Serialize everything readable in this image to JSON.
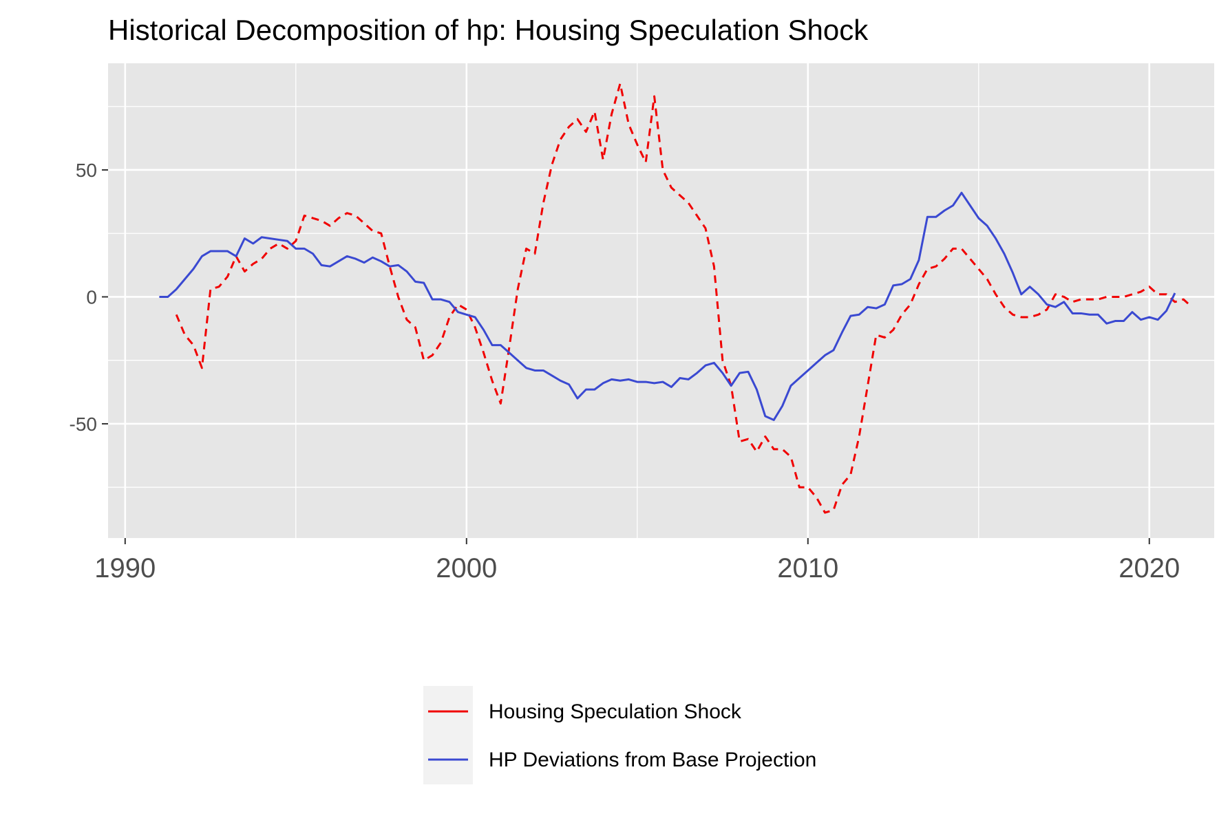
{
  "chart_data": {
    "type": "line",
    "title": "Historical Decomposition of hp: Housing Speculation Shock",
    "xlabel": "",
    "ylabel": "",
    "xlim": [
      1989.5,
      2021.9
    ],
    "ylim": [
      -95,
      92
    ],
    "x_ticks": [
      1990,
      2000,
      2010,
      2020
    ],
    "x_tick_labels": [
      "1990",
      "2000",
      "2010",
      "2020"
    ],
    "y_ticks": [
      -50,
      0,
      50
    ],
    "y_tick_labels": [
      "-50",
      "0",
      "50"
    ],
    "grid": true,
    "legend_position": "bottom",
    "series": [
      {
        "name": "Housing Speculation Shock",
        "color": "#f00000",
        "dash": "dashed",
        "points": [
          [
            1991.5,
            -7
          ],
          [
            1991.75,
            -15
          ],
          [
            1992.0,
            -19
          ],
          [
            1992.25,
            -28
          ],
          [
            1992.5,
            3
          ],
          [
            1992.75,
            4
          ],
          [
            1993.0,
            8
          ],
          [
            1993.25,
            16
          ],
          [
            1993.5,
            10
          ],
          [
            1993.75,
            13
          ],
          [
            1994.0,
            15
          ],
          [
            1994.25,
            19
          ],
          [
            1994.5,
            21
          ],
          [
            1994.75,
            19
          ],
          [
            1995.0,
            22
          ],
          [
            1995.25,
            32
          ],
          [
            1995.5,
            31
          ],
          [
            1995.75,
            30
          ],
          [
            1996.0,
            28
          ],
          [
            1996.25,
            31
          ],
          [
            1996.5,
            33
          ],
          [
            1996.75,
            32
          ],
          [
            1997.0,
            29
          ],
          [
            1997.25,
            26
          ],
          [
            1997.5,
            25
          ],
          [
            1997.75,
            12
          ],
          [
            1998.0,
            0
          ],
          [
            1998.25,
            -9
          ],
          [
            1998.5,
            -12
          ],
          [
            1998.75,
            -25
          ],
          [
            1999.0,
            -23
          ],
          [
            1999.25,
            -18
          ],
          [
            1999.5,
            -8
          ],
          [
            1999.75,
            -3
          ],
          [
            2000.0,
            -5
          ],
          [
            2000.25,
            -12
          ],
          [
            2000.5,
            -22
          ],
          [
            2000.75,
            -33
          ],
          [
            2001.0,
            -42
          ],
          [
            2001.25,
            -20
          ],
          [
            2001.5,
            3
          ],
          [
            2001.75,
            19
          ],
          [
            2002.0,
            17
          ],
          [
            2002.25,
            37
          ],
          [
            2002.5,
            52
          ],
          [
            2002.75,
            62
          ],
          [
            2003.0,
            67
          ],
          [
            2003.25,
            70
          ],
          [
            2003.5,
            65
          ],
          [
            2003.75,
            73
          ],
          [
            2004.0,
            54
          ],
          [
            2004.25,
            72
          ],
          [
            2004.5,
            84
          ],
          [
            2004.75,
            68
          ],
          [
            2005.0,
            60
          ],
          [
            2005.25,
            53
          ],
          [
            2005.5,
            79
          ],
          [
            2005.75,
            50
          ],
          [
            2006.0,
            43
          ],
          [
            2006.25,
            40
          ],
          [
            2006.5,
            37
          ],
          [
            2006.75,
            32
          ],
          [
            2007.0,
            27
          ],
          [
            2007.25,
            12
          ],
          [
            2007.5,
            -25
          ],
          [
            2007.75,
            -35
          ],
          [
            2008.0,
            -57
          ],
          [
            2008.25,
            -56
          ],
          [
            2008.5,
            -61
          ],
          [
            2008.75,
            -55
          ],
          [
            2009.0,
            -60
          ],
          [
            2009.25,
            -60
          ],
          [
            2009.5,
            -63
          ],
          [
            2009.75,
            -75
          ],
          [
            2010.0,
            -75
          ],
          [
            2010.25,
            -79
          ],
          [
            2010.5,
            -85
          ],
          [
            2010.75,
            -84
          ],
          [
            2011.0,
            -74
          ],
          [
            2011.25,
            -70
          ],
          [
            2011.5,
            -55
          ],
          [
            2011.75,
            -35
          ],
          [
            2012.0,
            -15
          ],
          [
            2012.25,
            -16
          ],
          [
            2012.5,
            -13
          ],
          [
            2012.75,
            -7
          ],
          [
            2013.0,
            -3
          ],
          [
            2013.25,
            5
          ],
          [
            2013.5,
            11
          ],
          [
            2013.75,
            12
          ],
          [
            2014.0,
            15
          ],
          [
            2014.25,
            19
          ],
          [
            2014.5,
            19
          ],
          [
            2014.75,
            15
          ],
          [
            2015.0,
            11
          ],
          [
            2015.25,
            7
          ],
          [
            2015.5,
            1
          ],
          [
            2015.75,
            -4
          ],
          [
            2016.0,
            -7
          ],
          [
            2016.25,
            -8
          ],
          [
            2016.5,
            -8
          ],
          [
            2016.75,
            -7
          ],
          [
            2017.0,
            -5
          ],
          [
            2017.25,
            1
          ],
          [
            2017.5,
            0
          ],
          [
            2017.75,
            -2
          ],
          [
            2018.0,
            -1
          ],
          [
            2018.25,
            -1
          ],
          [
            2018.5,
            -1
          ],
          [
            2018.75,
            0
          ],
          [
            2019.0,
            0
          ],
          [
            2019.25,
            0
          ],
          [
            2019.5,
            1
          ],
          [
            2019.75,
            2
          ],
          [
            2020.0,
            4
          ],
          [
            2020.25,
            1
          ],
          [
            2020.5,
            1
          ],
          [
            2020.75,
            -2
          ],
          [
            2021.0,
            -1
          ],
          [
            2021.25,
            -4
          ]
        ]
      },
      {
        "name": "HP Deviations from Base Projection",
        "color": "#3a49d1",
        "dash": "solid",
        "points": [
          [
            1991.0,
            0
          ],
          [
            1991.25,
            0
          ],
          [
            1991.5,
            3
          ],
          [
            1991.75,
            7
          ],
          [
            1992.0,
            11
          ],
          [
            1992.25,
            16
          ],
          [
            1992.5,
            18
          ],
          [
            1992.75,
            18
          ],
          [
            1993.0,
            18
          ],
          [
            1993.25,
            16
          ],
          [
            1993.5,
            23
          ],
          [
            1993.75,
            21
          ],
          [
            1994.0,
            23.5
          ],
          [
            1994.25,
            23
          ],
          [
            1994.5,
            22.5
          ],
          [
            1994.75,
            22
          ],
          [
            1995.0,
            19
          ],
          [
            1995.25,
            19
          ],
          [
            1995.5,
            17
          ],
          [
            1995.75,
            12.5
          ],
          [
            1996.0,
            12
          ],
          [
            1996.25,
            14
          ],
          [
            1996.5,
            16
          ],
          [
            1996.75,
            15
          ],
          [
            1997.0,
            13.5
          ],
          [
            1997.25,
            15.5
          ],
          [
            1997.5,
            14
          ],
          [
            1997.75,
            12
          ],
          [
            1998.0,
            12.5
          ],
          [
            1998.25,
            10
          ],
          [
            1998.5,
            6
          ],
          [
            1998.75,
            5.5
          ],
          [
            1999.0,
            -1
          ],
          [
            1999.25,
            -1
          ],
          [
            1999.5,
            -2
          ],
          [
            1999.75,
            -6
          ],
          [
            2000.0,
            -7
          ],
          [
            2000.25,
            -8
          ],
          [
            2000.5,
            -13
          ],
          [
            2000.75,
            -19
          ],
          [
            2001.0,
            -19
          ],
          [
            2001.25,
            -22
          ],
          [
            2001.5,
            -25
          ],
          [
            2001.75,
            -28
          ],
          [
            2002.0,
            -29
          ],
          [
            2002.25,
            -29
          ],
          [
            2002.5,
            -31
          ],
          [
            2002.75,
            -33
          ],
          [
            2003.0,
            -34.5
          ],
          [
            2003.25,
            -40
          ],
          [
            2003.5,
            -36.5
          ],
          [
            2003.75,
            -36.5
          ],
          [
            2004.0,
            -34
          ],
          [
            2004.25,
            -32.5
          ],
          [
            2004.5,
            -33
          ],
          [
            2004.75,
            -32.5
          ],
          [
            2005.0,
            -33.5
          ],
          [
            2005.25,
            -33.5
          ],
          [
            2005.5,
            -34
          ],
          [
            2005.75,
            -33.5
          ],
          [
            2006.0,
            -35.5
          ],
          [
            2006.25,
            -32
          ],
          [
            2006.5,
            -32.5
          ],
          [
            2006.75,
            -30
          ],
          [
            2007.0,
            -27
          ],
          [
            2007.25,
            -26
          ],
          [
            2007.5,
            -30
          ],
          [
            2007.75,
            -35
          ],
          [
            2008.0,
            -30
          ],
          [
            2008.25,
            -29.5
          ],
          [
            2008.5,
            -36.5
          ],
          [
            2008.75,
            -47
          ],
          [
            2009.0,
            -48.5
          ],
          [
            2009.25,
            -43
          ],
          [
            2009.5,
            -35
          ],
          [
            2009.75,
            -32
          ],
          [
            2010.0,
            -29
          ],
          [
            2010.25,
            -26
          ],
          [
            2010.5,
            -23
          ],
          [
            2010.75,
            -21
          ],
          [
            2011.0,
            -14
          ],
          [
            2011.25,
            -7.5
          ],
          [
            2011.5,
            -7
          ],
          [
            2011.75,
            -4
          ],
          [
            2012.0,
            -4.5
          ],
          [
            2012.25,
            -3
          ],
          [
            2012.5,
            4.5
          ],
          [
            2012.75,
            5
          ],
          [
            2013.0,
            7
          ],
          [
            2013.25,
            14.5
          ],
          [
            2013.5,
            31.5
          ],
          [
            2013.75,
            31.5
          ],
          [
            2014.0,
            34
          ],
          [
            2014.25,
            36
          ],
          [
            2014.5,
            41
          ],
          [
            2014.75,
            36
          ],
          [
            2015.0,
            31
          ],
          [
            2015.25,
            28
          ],
          [
            2015.5,
            23
          ],
          [
            2015.75,
            17
          ],
          [
            2016.0,
            9.5
          ],
          [
            2016.25,
            1
          ],
          [
            2016.5,
            4
          ],
          [
            2016.75,
            1
          ],
          [
            2017.0,
            -3
          ],
          [
            2017.25,
            -4
          ],
          [
            2017.5,
            -2
          ],
          [
            2017.75,
            -6.5
          ],
          [
            2018.0,
            -6.5
          ],
          [
            2018.25,
            -7
          ],
          [
            2018.5,
            -7
          ],
          [
            2018.75,
            -10.5
          ],
          [
            2019.0,
            -9.5
          ],
          [
            2019.25,
            -9.5
          ],
          [
            2019.5,
            -6
          ],
          [
            2019.75,
            -9
          ],
          [
            2020.0,
            -8
          ],
          [
            2020.25,
            -9
          ],
          [
            2020.5,
            -5.5
          ],
          [
            2020.75,
            1.5
          ]
        ]
      }
    ]
  },
  "legend_items": [
    {
      "label": "Housing Speculation Shock"
    },
    {
      "label": "HP Deviations from Base Projection"
    }
  ]
}
